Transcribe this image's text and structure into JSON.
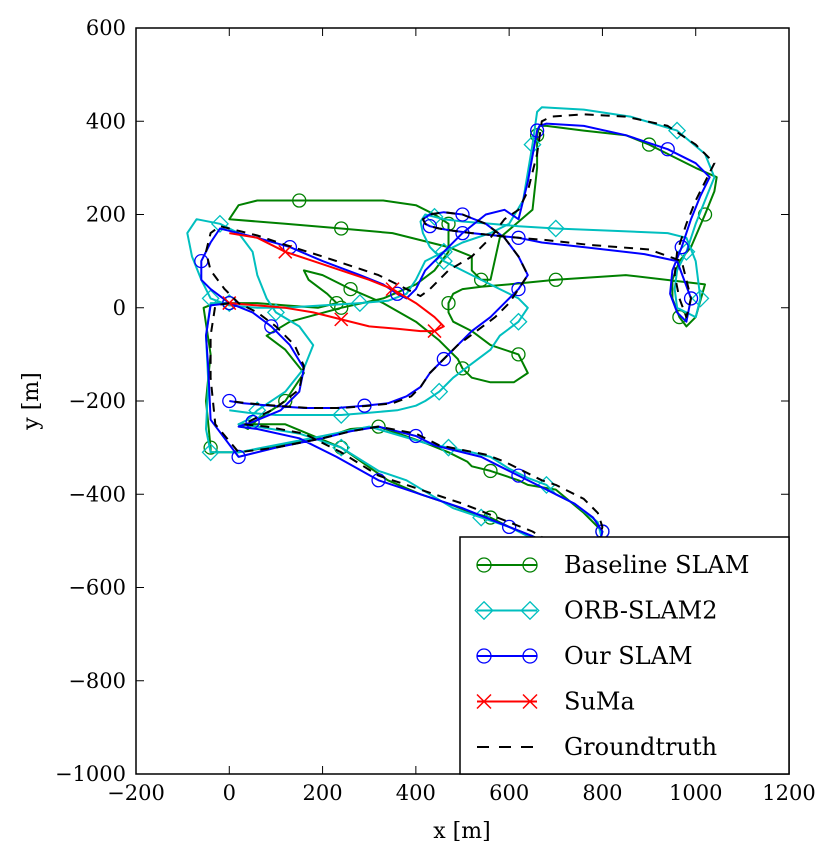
{
  "chart_data": {
    "type": "line",
    "xlabel": "x [m]",
    "ylabel": "y [m]",
    "xlim": [
      -200,
      1200
    ],
    "ylim": [
      -1000,
      600
    ],
    "x_ticks": [
      -200,
      0,
      200,
      400,
      600,
      800,
      1000,
      1200
    ],
    "y_ticks": [
      -1000,
      -800,
      -600,
      -400,
      -200,
      0,
      200,
      400,
      600
    ],
    "x_tick_labels": [
      "−200",
      "0",
      "200",
      "400",
      "600",
      "800",
      "1000",
      "1200"
    ],
    "y_tick_labels": [
      "−1000",
      "−800",
      "−600",
      "−400",
      "−200",
      "0",
      "200",
      "400",
      "600"
    ],
    "grid": false,
    "legend_position": "bottom-right",
    "series": [
      {
        "name": "Baseline SLAM",
        "color": "#008000",
        "marker": "circle",
        "x": [
          0,
          -30,
          -55,
          -40,
          -50,
          -40,
          -40,
          20,
          200,
          260,
          320,
          420,
          470,
          510,
          520,
          560,
          620,
          640,
          700,
          760,
          800,
          790,
          720,
          650,
          600,
          560,
          520,
          470,
          410,
          340,
          240,
          120,
          20,
          40,
          60,
          120,
          160,
          120,
          80,
          130,
          240,
          330,
          400,
          440,
          470,
          470,
          440,
          400,
          330,
          250,
          150,
          60,
          20,
          0,
          120,
          240,
          350,
          470,
          520,
          520,
          540,
          560,
          580,
          650,
          660,
          660,
          665,
          680,
          760,
          850,
          900,
          960,
          1000,
          1045,
          1040,
          1020,
          990,
          965,
          950,
          950,
          965,
          980,
          1000,
          1020,
          850,
          700,
          600,
          540,
          500,
          480,
          470,
          470,
          480,
          520,
          560,
          620,
          640,
          610,
          560,
          520,
          500,
          490,
          450,
          400,
          330,
          260,
          200,
          160,
          170,
          210,
          230,
          190,
          120,
          60,
          0
        ],
        "y": [
          10,
          10,
          0,
          -100,
          -200,
          -300,
          -310,
          -310,
          -280,
          -260,
          -255,
          -290,
          -310,
          -330,
          -340,
          -350,
          -370,
          -380,
          -390,
          -440,
          -480,
          -520,
          -520,
          -490,
          -470,
          -450,
          -440,
          -420,
          -400,
          -370,
          -300,
          -250,
          -250,
          -260,
          -240,
          -200,
          -140,
          -90,
          -60,
          -30,
          0,
          20,
          50,
          80,
          120,
          180,
          200,
          220,
          230,
          230,
          230,
          230,
          220,
          190,
          180,
          170,
          160,
          130,
          110,
          80,
          60,
          60,
          150,
          210,
          300,
          370,
          390,
          390,
          380,
          370,
          350,
          320,
          300,
          280,
          250,
          200,
          130,
          100,
          60,
          20,
          -20,
          -40,
          -20,
          50,
          70,
          60,
          50,
          45,
          40,
          30,
          10,
          -10,
          -30,
          -50,
          -80,
          -100,
          -140,
          -160,
          -160,
          -150,
          -130,
          -110,
          -70,
          -30,
          10,
          40,
          70,
          80,
          60,
          30,
          10,
          0,
          5,
          10,
          10
        ]
      },
      {
        "name": "ORB-SLAM2",
        "color": "#00BFBF",
        "marker": "diamond",
        "x": [
          0,
          -40,
          -50,
          -45,
          -50,
          -40,
          20,
          200,
          300,
          420,
          470,
          520,
          560,
          600,
          640,
          680,
          700,
          740,
          790,
          800,
          780,
          760,
          700,
          660,
          600,
          540,
          480,
          430,
          380,
          320,
          240,
          150,
          60,
          20,
          40,
          60,
          120,
          160,
          180,
          150,
          100,
          80,
          60,
          50,
          20,
          -20,
          -70,
          -90,
          -80,
          -60,
          -40,
          0,
          60,
          120,
          200,
          280,
          340,
          380,
          400,
          420,
          460,
          500,
          560,
          600,
          630,
          650,
          660,
          670,
          760,
          860,
          960,
          1020,
          1040,
          1020,
          1000,
          980,
          960,
          955,
          960,
          1000,
          1010,
          1000,
          980,
          940,
          820,
          700,
          620,
          560,
          500,
          460,
          440,
          420,
          410,
          415,
          430,
          460,
          520,
          580,
          620,
          640,
          620,
          580,
          560,
          520,
          480,
          450,
          420,
          400,
          360,
          300,
          240,
          180,
          100,
          40,
          0
        ],
        "y": [
          10,
          10,
          -60,
          -160,
          -260,
          -310,
          -310,
          -275,
          -255,
          -290,
          -300,
          -310,
          -320,
          -345,
          -365,
          -380,
          -400,
          -420,
          -460,
          -500,
          -540,
          -560,
          -530,
          -500,
          -470,
          -450,
          -430,
          -400,
          -370,
          -350,
          -300,
          -270,
          -255,
          -250,
          -240,
          -220,
          -180,
          -130,
          -80,
          -40,
          -10,
          20,
          70,
          120,
          160,
          180,
          190,
          160,
          110,
          60,
          20,
          5,
          0,
          0,
          5,
          10,
          15,
          30,
          60,
          100,
          120,
          140,
          160,
          180,
          230,
          350,
          420,
          430,
          425,
          410,
          380,
          330,
          280,
          230,
          180,
          120,
          80,
          40,
          0,
          -20,
          20,
          100,
          150,
          160,
          165,
          170,
          175,
          180,
          185,
          190,
          195,
          200,
          185,
          160,
          130,
          100,
          70,
          40,
          20,
          0,
          -30,
          -60,
          -90,
          -120,
          -150,
          -180,
          -200,
          -210,
          -220,
          -225,
          -230,
          -230,
          -230,
          -225,
          -220
        ]
      },
      {
        "name": "Our SLAM",
        "color": "#0000FF",
        "marker": "circle",
        "x": [
          0,
          -40,
          -50,
          -45,
          -40,
          20,
          100,
          200,
          260,
          320,
          400,
          440,
          480,
          540,
          580,
          620,
          660,
          700,
          740,
          780,
          800,
          790,
          760,
          700,
          650,
          600,
          550,
          500,
          440,
          380,
          320,
          230,
          150,
          60,
          20,
          50,
          110,
          150,
          160,
          130,
          90,
          50,
          0,
          -40,
          -60,
          -60,
          -40,
          -20,
          0,
          60,
          130,
          200,
          240,
          280,
          330,
          360,
          380,
          400,
          420,
          460,
          500,
          550,
          590,
          620,
          640,
          660,
          665,
          680,
          760,
          850,
          940,
          1000,
          1030,
          1010,
          990,
          970,
          950,
          945,
          960,
          980,
          990,
          960,
          890,
          760,
          670,
          620,
          570,
          520,
          480,
          450,
          430,
          420,
          415,
          430,
          460,
          500,
          550,
          590,
          620,
          640,
          620,
          590,
          560,
          520,
          490,
          460,
          430,
          410,
          380,
          340,
          290,
          230,
          160,
          90,
          30,
          0
        ],
        "y": [
          10,
          5,
          -60,
          -130,
          -240,
          -320,
          -300,
          -280,
          -265,
          -255,
          -275,
          -295,
          -305,
          -320,
          -340,
          -360,
          -380,
          -400,
          -420,
          -450,
          -480,
          -520,
          -540,
          -520,
          -490,
          -470,
          -450,
          -430,
          -410,
          -390,
          -370,
          -320,
          -280,
          -260,
          -255,
          -245,
          -220,
          -180,
          -130,
          -80,
          -40,
          -10,
          10,
          40,
          60,
          100,
          140,
          170,
          165,
          150,
          130,
          100,
          85,
          70,
          50,
          30,
          20,
          40,
          80,
          120,
          160,
          200,
          210,
          190,
          270,
          380,
          390,
          395,
          390,
          370,
          340,
          310,
          280,
          240,
          190,
          130,
          80,
          30,
          -10,
          -30,
          20,
          100,
          115,
          130,
          140,
          150,
          155,
          160,
          165,
          170,
          175,
          180,
          190,
          200,
          205,
          200,
          180,
          150,
          110,
          70,
          40,
          10,
          -20,
          -50,
          -80,
          -110,
          -140,
          -170,
          -190,
          -205,
          -210,
          -215,
          -215,
          -210,
          -205,
          -200
        ]
      },
      {
        "name": "SuMa",
        "color": "#FF0000",
        "marker": "x",
        "x": [
          0,
          60,
          120,
          180,
          240,
          300,
          360,
          410,
          440,
          460,
          440,
          400,
          350,
          300,
          240,
          180,
          120,
          60,
          0
        ],
        "y": [
          10,
          5,
          0,
          -10,
          -25,
          -40,
          -45,
          -50,
          -50,
          -40,
          -20,
          10,
          40,
          60,
          80,
          100,
          120,
          150,
          160
        ]
      },
      {
        "name": "Groundtruth",
        "color": "#000000",
        "marker": "none",
        "dash": true,
        "x": [
          0,
          -30,
          -40,
          -40,
          -30,
          20,
          100,
          200,
          260,
          320,
          400,
          450,
          500,
          550,
          590,
          630,
          670,
          700,
          730,
          760,
          790,
          800,
          790,
          760,
          700,
          650,
          600,
          550,
          500,
          440,
          380,
          320,
          240,
          160,
          80,
          30,
          50,
          100,
          150,
          160,
          140,
          100,
          60,
          20,
          -10,
          -40,
          -50,
          -40,
          -20,
          0,
          60,
          120,
          200,
          260,
          320,
          360,
          390,
          410,
          430,
          470,
          520,
          560,
          590,
          620,
          640,
          660,
          670,
          690,
          760,
          850,
          940,
          1000,
          1040,
          1020,
          1000,
          980,
          960,
          955,
          965,
          980,
          990,
          970,
          900,
          770,
          680,
          620,
          570,
          520,
          480,
          450,
          430,
          420,
          415,
          430,
          460,
          500,
          550,
          590,
          620,
          640,
          620,
          600,
          570,
          530,
          490,
          460,
          430,
          410,
          390,
          350,
          300,
          240,
          170,
          100,
          40,
          0
        ],
        "y": [
          10,
          5,
          -60,
          -150,
          -250,
          -310,
          -300,
          -280,
          -265,
          -255,
          -270,
          -295,
          -305,
          -315,
          -330,
          -350,
          -370,
          -380,
          -395,
          -410,
          -440,
          -470,
          -510,
          -530,
          -510,
          -480,
          -460,
          -440,
          -420,
          -400,
          -380,
          -360,
          -310,
          -270,
          -255,
          -250,
          -240,
          -215,
          -175,
          -125,
          -80,
          -40,
          -10,
          10,
          40,
          80,
          120,
          160,
          175,
          170,
          155,
          135,
          110,
          90,
          70,
          50,
          35,
          25,
          40,
          80,
          110,
          150,
          190,
          210,
          250,
          330,
          400,
          410,
          415,
          410,
          390,
          350,
          310,
          270,
          230,
          180,
          120,
          70,
          20,
          -20,
          20,
          100,
          125,
          135,
          145,
          150,
          155,
          160,
          165,
          170,
          175,
          180,
          190,
          200,
          205,
          200,
          180,
          150,
          110,
          70,
          40,
          10,
          -20,
          -50,
          -80,
          -110,
          -140,
          -170,
          -190,
          -205,
          -210,
          -215,
          -215,
          -210,
          -205,
          -200
        ]
      }
    ]
  }
}
